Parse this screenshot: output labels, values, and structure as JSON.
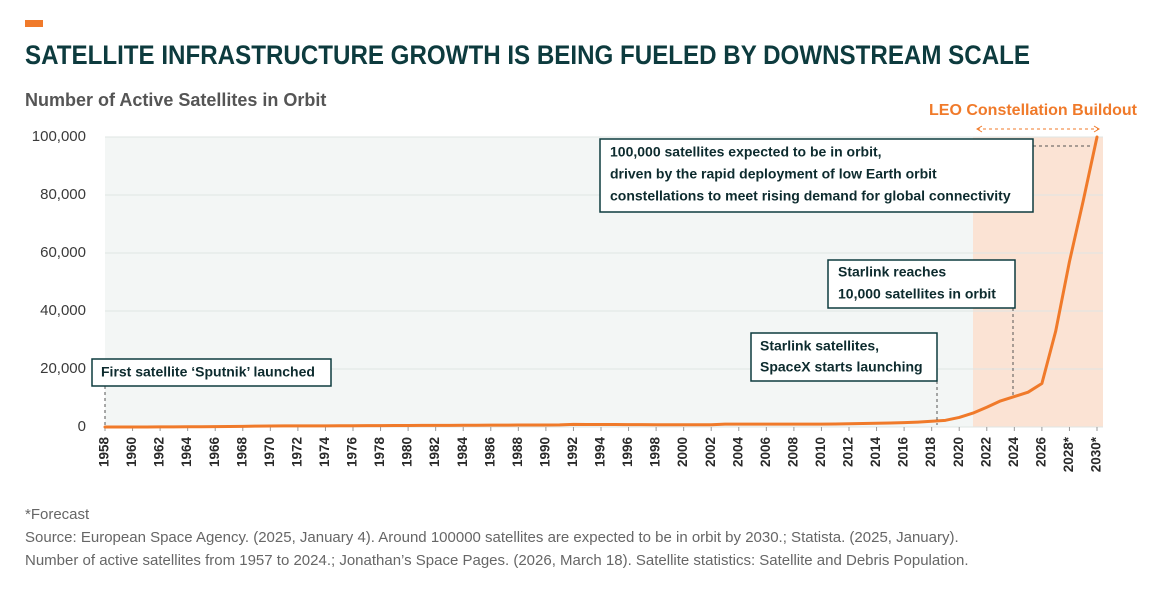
{
  "chart_data": {
    "type": "line",
    "title": "SATELLITE INFRASTRUCTURE GROWTH IS BEING FUELED BY DOWNSTREAM SCALE",
    "subtitle": "Number of Active Satellites in Orbit",
    "x": [
      1958,
      1959,
      1960,
      1961,
      1962,
      1963,
      1964,
      1965,
      1966,
      1967,
      1968,
      1969,
      1970,
      1971,
      1972,
      1973,
      1974,
      1975,
      1976,
      1977,
      1978,
      1979,
      1980,
      1981,
      1982,
      1983,
      1984,
      1985,
      1986,
      1987,
      1988,
      1989,
      1990,
      1991,
      1992,
      1993,
      1994,
      1995,
      1996,
      1997,
      1998,
      1999,
      2000,
      2001,
      2002,
      2003,
      2004,
      2005,
      2006,
      2007,
      2008,
      2009,
      2010,
      2011,
      2012,
      2013,
      2014,
      2015,
      2016,
      2017,
      2018,
      2019,
      2020,
      2021,
      2022,
      2023,
      2024,
      2025,
      2026,
      2027,
      2028,
      2029,
      2030
    ],
    "values": [
      2,
      3,
      10,
      20,
      40,
      60,
      80,
      100,
      120,
      150,
      200,
      300,
      350,
      370,
      380,
      390,
      400,
      420,
      440,
      460,
      480,
      500,
      520,
      540,
      560,
      580,
      600,
      620,
      640,
      660,
      680,
      700,
      700,
      720,
      900,
      880,
      860,
      840,
      820,
      800,
      790,
      780,
      770,
      760,
      760,
      1000,
      1000,
      1000,
      1000,
      1000,
      1000,
      1000,
      1000,
      1050,
      1100,
      1200,
      1300,
      1400,
      1500,
      1700,
      2000,
      2300,
      3300,
      4800,
      6800,
      9000,
      10500,
      12000,
      15000,
      33000,
      57000,
      78000,
      100000
    ],
    "color": "#f07a2a",
    "xlim": [
      1958,
      2030
    ],
    "xticks": [
      1958,
      1960,
      1962,
      1964,
      1966,
      1968,
      1970,
      1972,
      1974,
      1976,
      1978,
      1980,
      1982,
      1984,
      1986,
      1988,
      1990,
      1992,
      1994,
      1996,
      1998,
      2000,
      2002,
      2004,
      2006,
      2008,
      2010,
      2012,
      2014,
      2016,
      2018,
      2020,
      2022,
      2024,
      2026,
      {
        "value": 2028,
        "label": "2028*"
      },
      {
        "value": 2030,
        "label": "2030*"
      }
    ],
    "ylim": [
      0,
      100000
    ],
    "yticks": [
      0,
      {
        "value": 20000,
        "label": "20,000"
      },
      {
        "value": 40000,
        "label": "40,000"
      },
      {
        "value": 60000,
        "label": "60,000"
      },
      {
        "value": 80000,
        "label": "80,000"
      },
      {
        "value": 100000,
        "label": "100,000"
      }
    ],
    "grid": true,
    "highlight": {
      "label": "LEO Constellation Buildout",
      "from": 2021,
      "to": 2030
    },
    "annotations": [
      {
        "lines": [
          "First satellite ‘Sputnik’ launched"
        ]
      },
      {
        "lines": [
          "Starlink satellites,",
          "SpaceX starts launching"
        ]
      },
      {
        "lines": [
          "Starlink reaches",
          "10,000 satellites in orbit"
        ]
      },
      {
        "lines": [
          "100,000 satellites expected to be in orbit,",
          "driven by the rapid deployment of low Earth orbit",
          "constellations to meet rising demand for global connectivity"
        ]
      }
    ],
    "footnote": "*Forecast",
    "source": [
      "Source: European Space Agency. (2025, January 4). Around 100000 satellites are expected to be in orbit by 2030.; Statista. (2025, January).",
      "Number of active satellites from 1957 to 2024.; Jonathan’s Space Pages. (2026, March 18). Satellite statistics: Satellite and Debris Population."
    ]
  }
}
